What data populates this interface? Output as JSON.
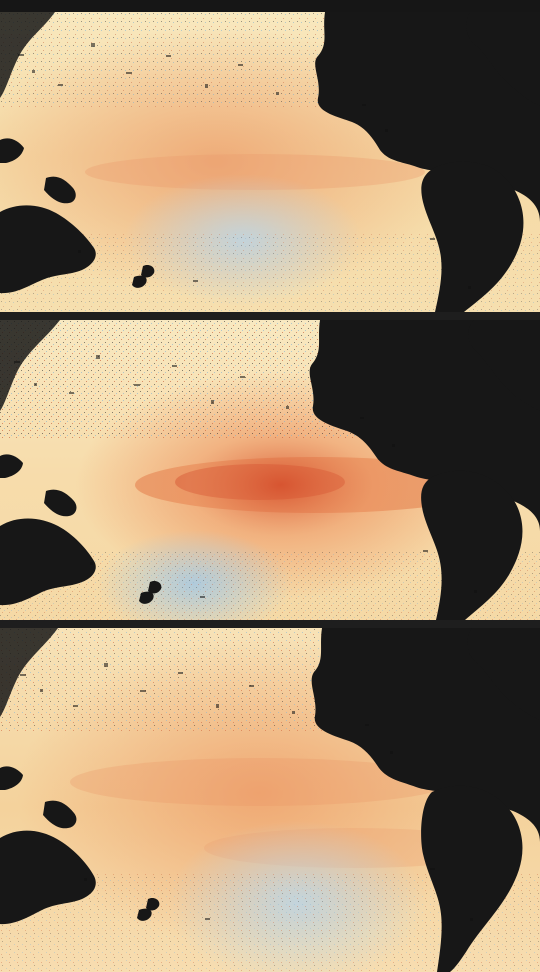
{
  "figure": {
    "panel_count": 3,
    "panels": [
      {
        "id": "panel-1",
        "pattern": "weak-warm",
        "colors": {
          "ocean_base": "#f7e4b6",
          "warm": "#f2b07d",
          "hot": "#c84a2c",
          "cool": "#b9d3e4",
          "land": "#171717"
        }
      },
      {
        "id": "panel-2",
        "pattern": "strong-equatorial-warm",
        "colors": {
          "ocean_base": "#f9e6bd",
          "warm": "#f0a06d",
          "hot": "#b83421",
          "cool": "#b7d1e3",
          "land": "#171717"
        }
      },
      {
        "id": "panel-3",
        "pattern": "broad-warm",
        "colors": {
          "ocean_base": "#f8dfaf",
          "warm": "#f2aa74",
          "hot": "#c85232",
          "cool": "#bdd6e6",
          "land": "#171717"
        }
      }
    ],
    "background_color": "#161616",
    "separator_color": "#1e1e1e"
  }
}
